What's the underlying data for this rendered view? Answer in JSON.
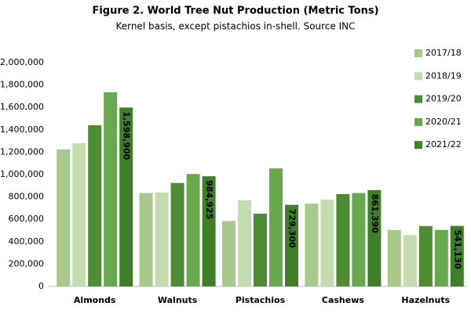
{
  "chart_data": {
    "type": "bar",
    "title": "Figure 2. World Tree Nut Production (Metric Tons)",
    "subtitle": "Kernel basis, except pistachios in-shell. Source INC",
    "categories": [
      "Almonds",
      "Walnuts",
      "Pistachios",
      "Cashews",
      "Hazelnuts"
    ],
    "series": [
      {
        "name": "2017/18",
        "color": "#a9c98c",
        "values": [
          1225000,
          835000,
          585000,
          740000,
          505000
        ]
      },
      {
        "name": "2018/19",
        "color": "#c5dcb0",
        "values": [
          1280000,
          840000,
          770000,
          775000,
          460000
        ]
      },
      {
        "name": "2019/20",
        "color": "#4f8a35",
        "values": [
          1440000,
          925000,
          650000,
          825000,
          540000
        ]
      },
      {
        "name": "2020/21",
        "color": "#6aa84f",
        "values": [
          1735000,
          1005000,
          1055000,
          835000,
          505000
        ]
      },
      {
        "name": "2021/22",
        "color": "#3f7f2a",
        "values": [
          1598900,
          984925,
          729300,
          861390,
          541130
        ],
        "value_labels": [
          "1,598,900",
          "984,925",
          "729,300",
          "861,390",
          "541,130"
        ]
      }
    ],
    "ylim": [
      0,
      2000000
    ],
    "yticks": [
      0,
      {
        "value": 200000,
        "label": "200,000"
      },
      {
        "value": 400000,
        "label": "400,000"
      },
      {
        "value": 600000,
        "label": "600,000"
      },
      {
        "value": 800000,
        "label": "800,000"
      },
      {
        "value": 1000000,
        "label": "1,000,000"
      },
      {
        "value": 1200000,
        "label": "1,200,000"
      },
      {
        "value": 1400000,
        "label": "1,400,000"
      },
      {
        "value": 1600000,
        "label": "1,600,000"
      },
      {
        "value": 1800000,
        "label": "1,800,000"
      },
      {
        "value": 2000000,
        "label": "2,000,000"
      }
    ],
    "grid": false,
    "legend": "right"
  }
}
